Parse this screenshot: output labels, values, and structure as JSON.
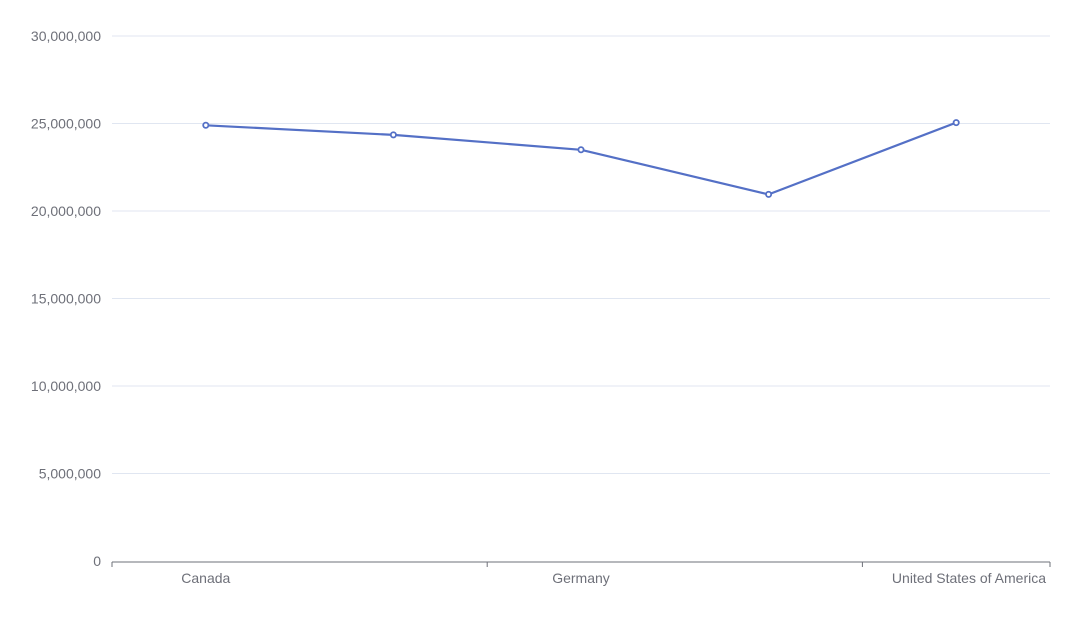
{
  "chart_data": {
    "type": "line",
    "title": "",
    "xlabel": "",
    "ylabel": "",
    "categories": [
      "Canada",
      "",
      "Germany",
      "",
      "United States of America"
    ],
    "x_tick_labels": [
      "Canada",
      "Germany",
      "United States of America"
    ],
    "series": [
      {
        "values": [
          24900000,
          24350000,
          23500000,
          20950000,
          25050000
        ],
        "color": "#5470c6"
      }
    ],
    "y_ticks": [
      0,
      5000000,
      10000000,
      15000000,
      20000000,
      25000000,
      30000000
    ],
    "y_tick_labels": [
      "0",
      "5,000,000",
      "10,000,000",
      "15,000,000",
      "20,000,000",
      "25,000,000",
      "30,000,000"
    ],
    "ylim": [
      0,
      30000000
    ],
    "grid": true,
    "colors": {
      "grid": "#e0e6f1",
      "axis": "#6e7079",
      "series": "#5470c6"
    }
  }
}
